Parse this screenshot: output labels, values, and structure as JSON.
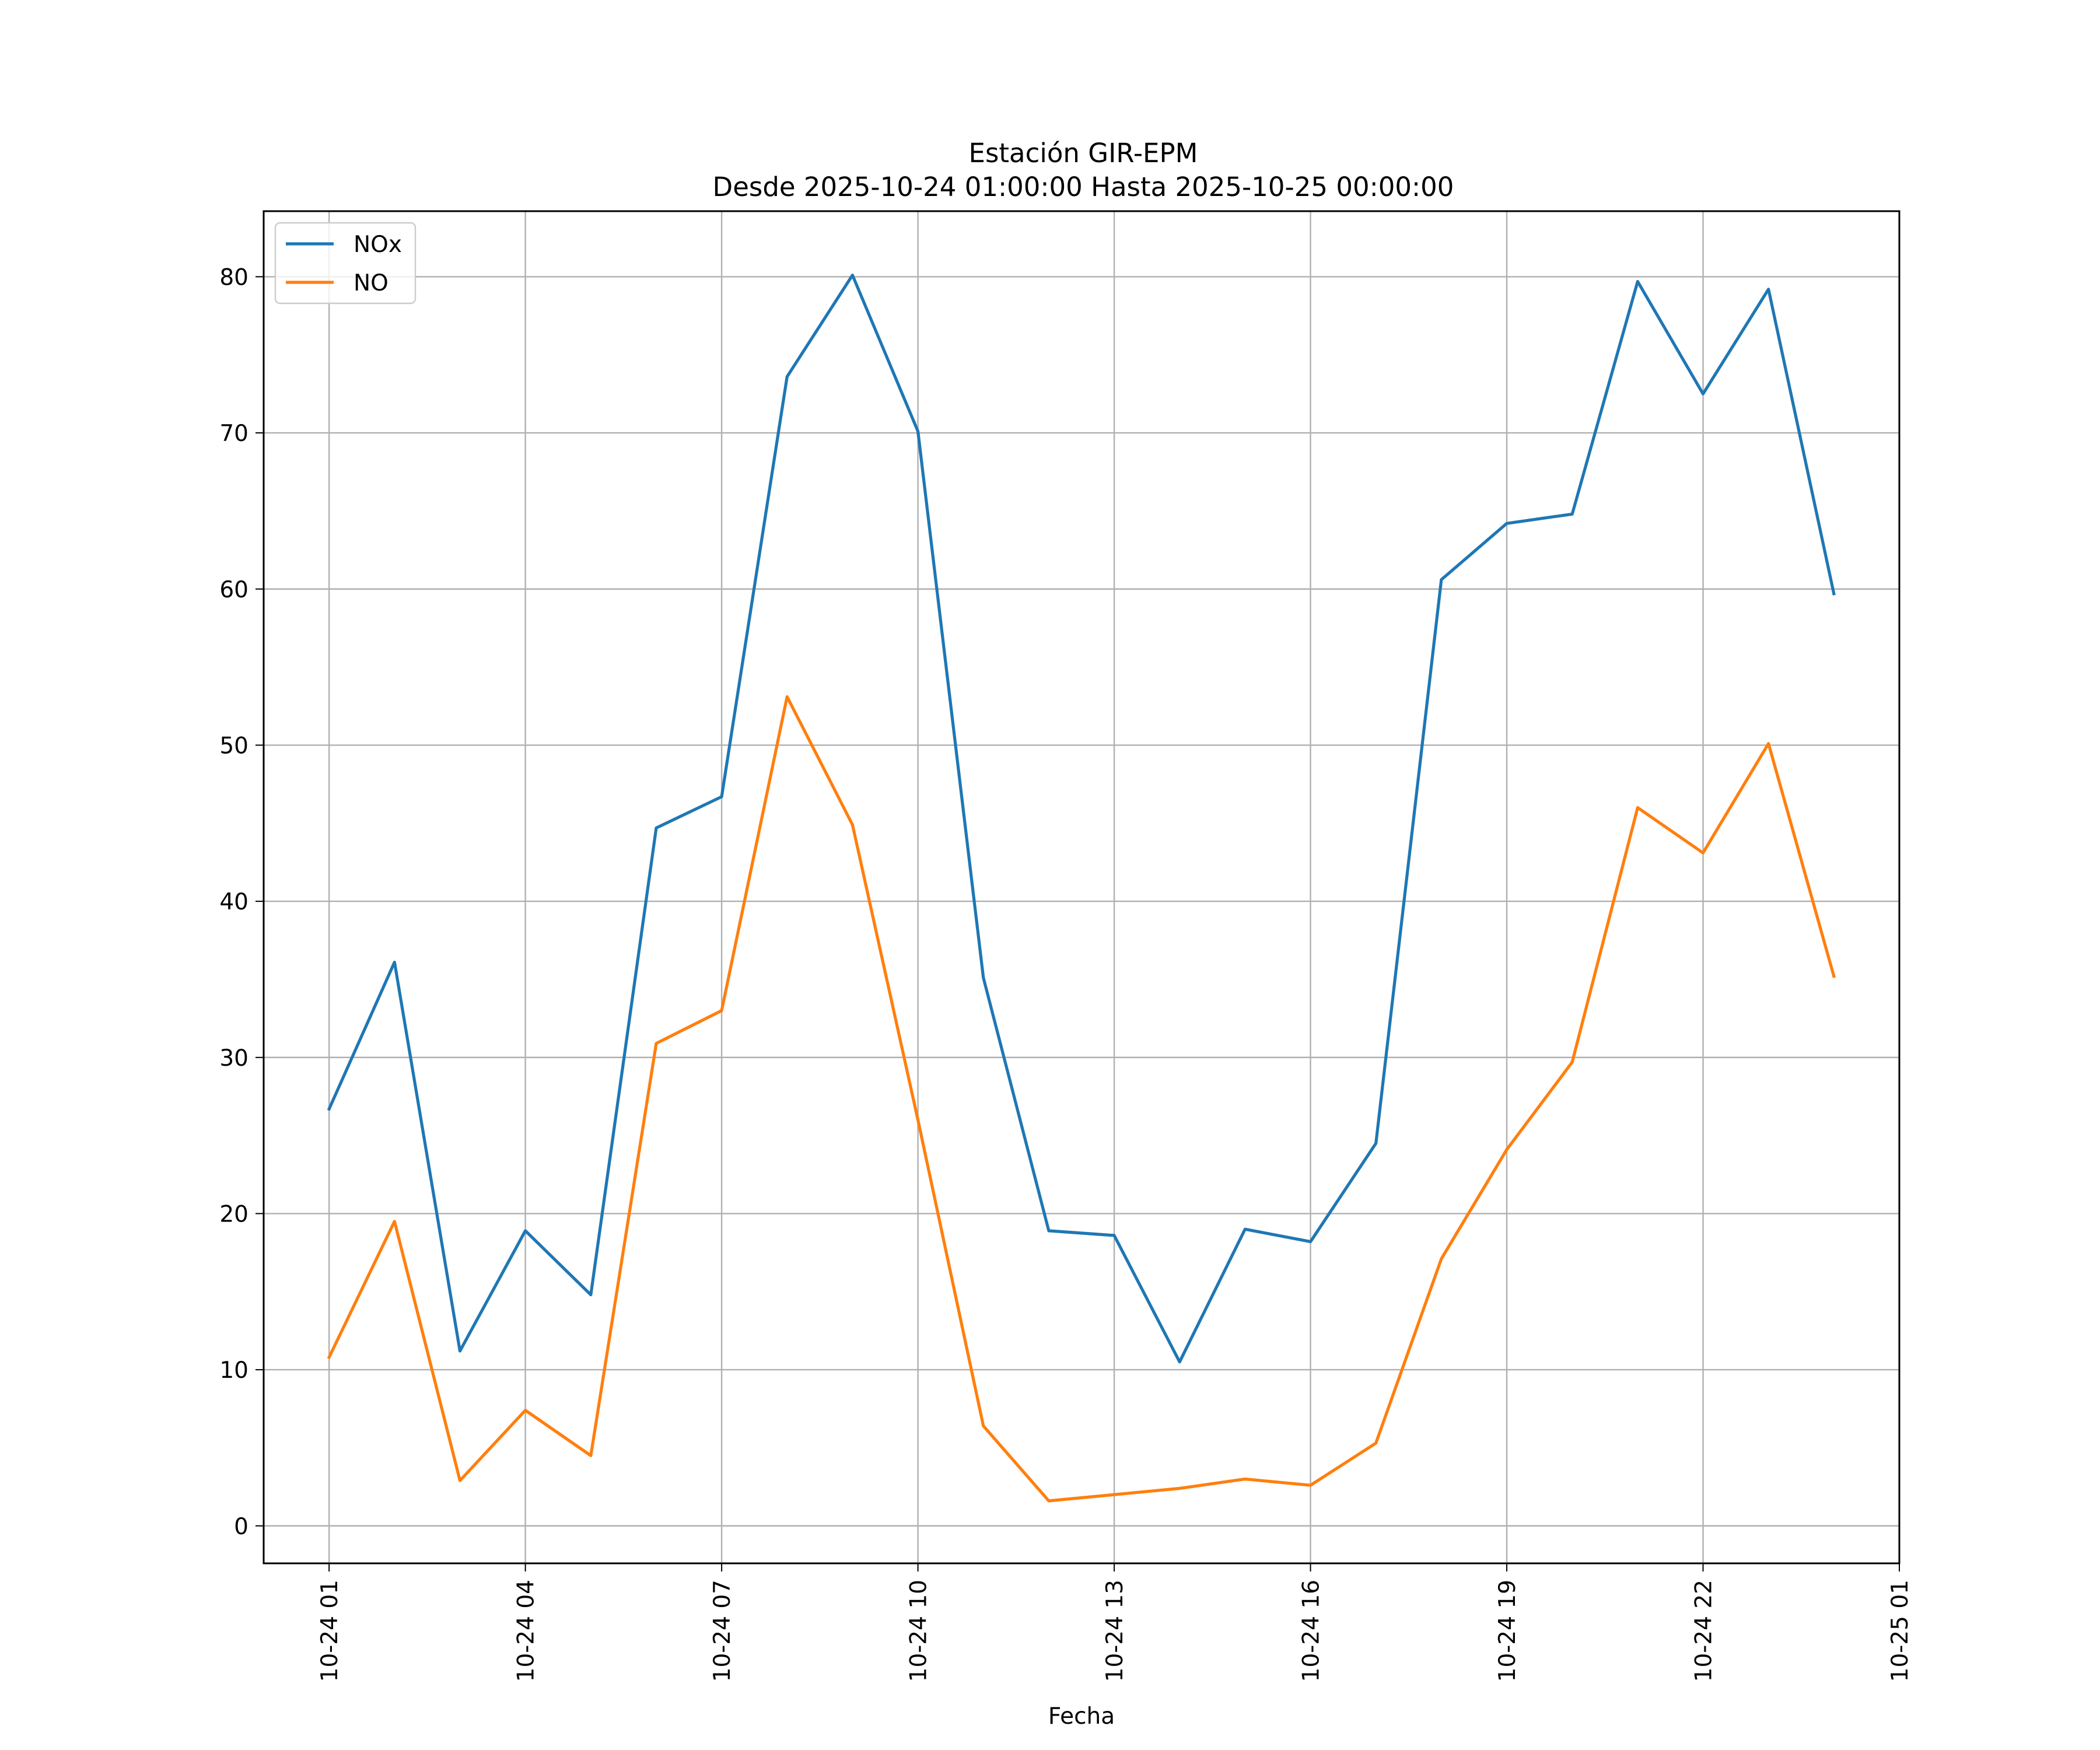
{
  "chart_data": {
    "type": "line",
    "title": "Estación GIR-EPM",
    "subtitle": "Desde 2025-10-24 01:00:00 Hasta 2025-10-25 00:00:00",
    "xlabel": "Fecha",
    "ylabel": "",
    "x": [
      "2025-10-24 01:00",
      "2025-10-24 02:00",
      "2025-10-24 03:00",
      "2025-10-24 04:00",
      "2025-10-24 05:00",
      "2025-10-24 06:00",
      "2025-10-24 07:00",
      "2025-10-24 08:00",
      "2025-10-24 09:00",
      "2025-10-24 10:00",
      "2025-10-24 11:00",
      "2025-10-24 12:00",
      "2025-10-24 13:00",
      "2025-10-24 14:00",
      "2025-10-24 15:00",
      "2025-10-24 16:00",
      "2025-10-24 17:00",
      "2025-10-24 18:00",
      "2025-10-24 19:00",
      "2025-10-24 20:00",
      "2025-10-24 21:00",
      "2025-10-24 22:00",
      "2025-10-24 23:00",
      "2025-10-25 00:00"
    ],
    "xlim": [
      "2025-10-24 00:00",
      "2025-10-25 01:00"
    ],
    "xticks": [
      {
        "value": "2025-10-24 01:00",
        "label": "10-24 01"
      },
      {
        "value": "2025-10-24 04:00",
        "label": "10-24 04"
      },
      {
        "value": "2025-10-24 07:00",
        "label": "10-24 07"
      },
      {
        "value": "2025-10-24 10:00",
        "label": "10-24 10"
      },
      {
        "value": "2025-10-24 13:00",
        "label": "10-24 13"
      },
      {
        "value": "2025-10-24 16:00",
        "label": "10-24 16"
      },
      {
        "value": "2025-10-24 19:00",
        "label": "10-24 19"
      },
      {
        "value": "2025-10-24 22:00",
        "label": "10-24 22"
      },
      {
        "value": "2025-10-25 01:00",
        "label": "10-25 01"
      }
    ],
    "ylim": [
      -2.4,
      84.2
    ],
    "yticks": [
      0,
      10,
      20,
      30,
      40,
      50,
      60,
      70,
      80
    ],
    "grid": true,
    "legend_position": "top-left",
    "series": [
      {
        "name": "NOx",
        "color": "#1f77b4",
        "values": [
          26.7,
          36.1,
          11.2,
          18.9,
          14.8,
          44.7,
          46.7,
          73.6,
          80.1,
          70.1,
          35.1,
          18.9,
          18.6,
          10.5,
          19.0,
          18.2,
          24.5,
          60.6,
          64.2,
          64.8,
          79.7,
          72.5,
          79.2,
          59.7
        ]
      },
      {
        "name": "NO",
        "color": "#ff7f0e",
        "values": [
          10.8,
          19.5,
          2.9,
          7.4,
          4.5,
          30.9,
          33.0,
          53.1,
          44.9,
          26.0,
          6.4,
          1.6,
          2.0,
          2.4,
          3.0,
          2.6,
          5.3,
          17.1,
          24.1,
          29.7,
          46.0,
          43.1,
          50.1,
          35.2
        ]
      }
    ]
  }
}
